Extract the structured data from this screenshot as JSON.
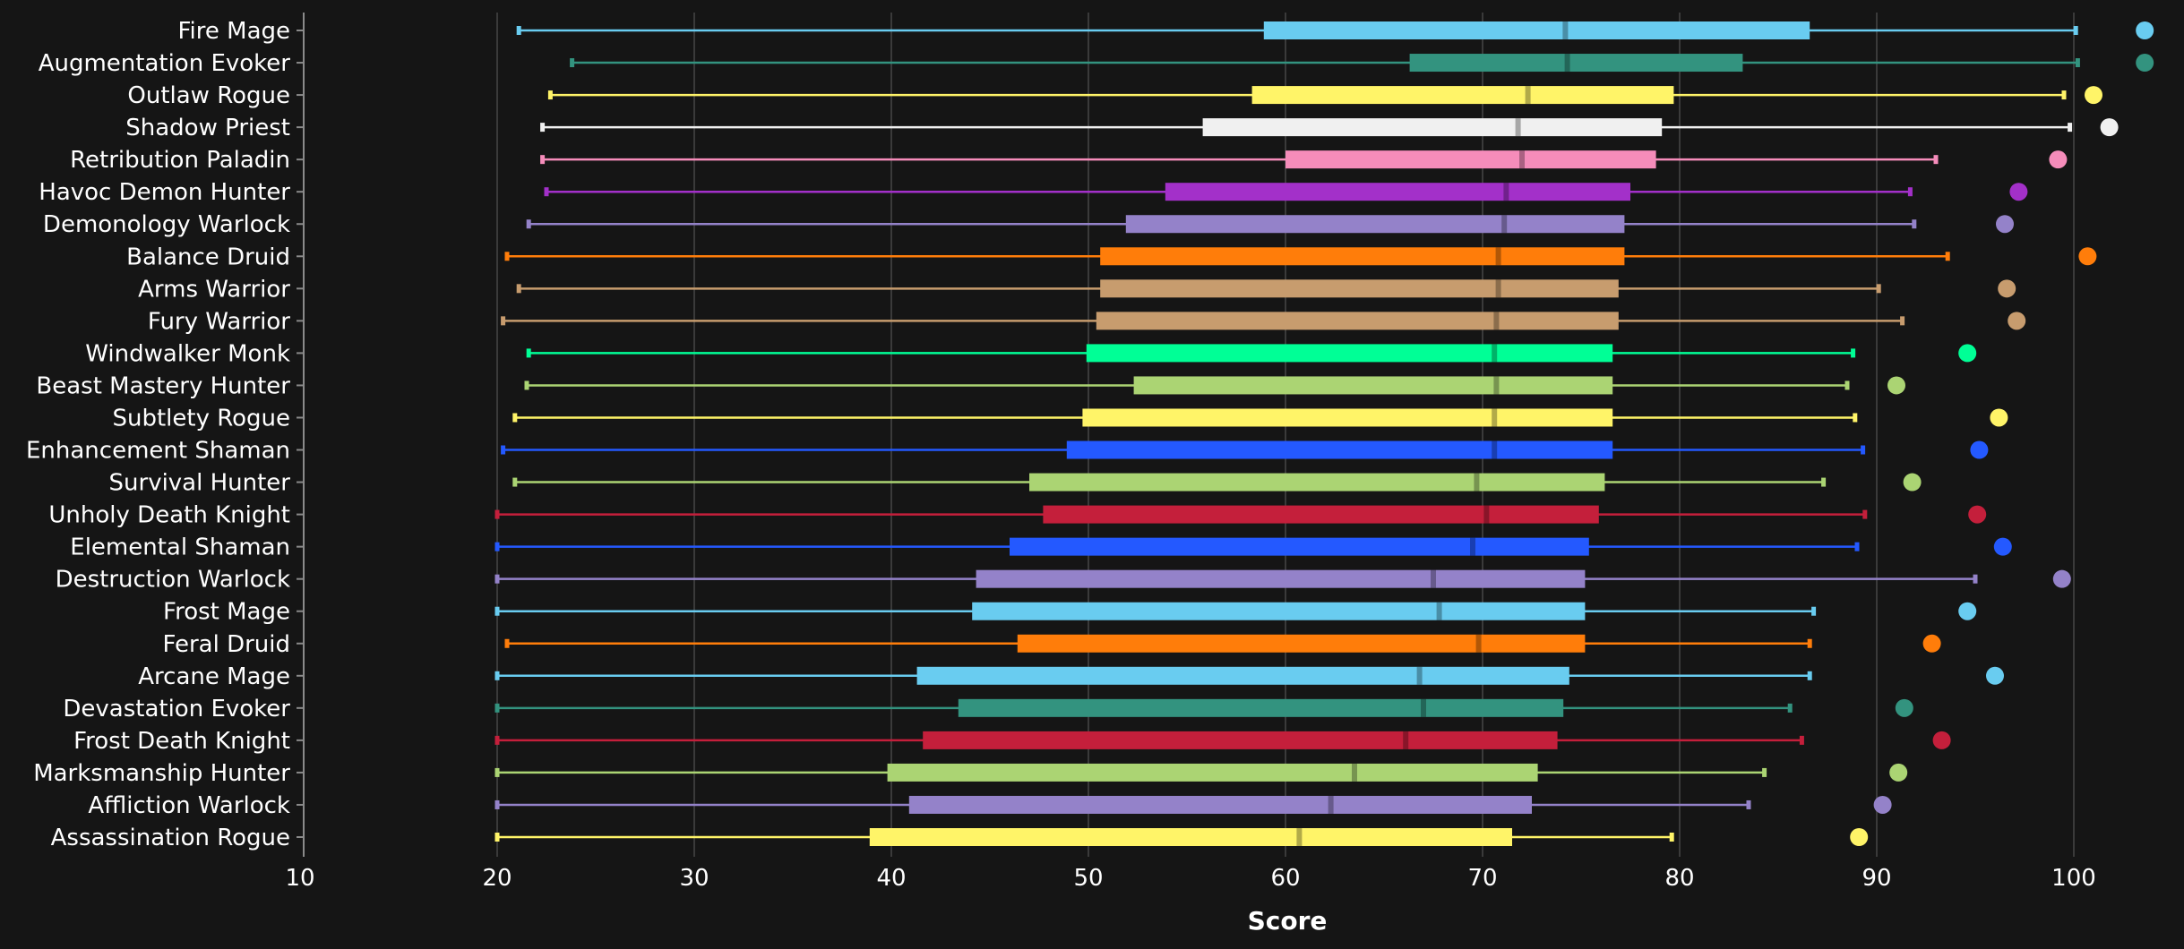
{
  "chart_data": {
    "type": "box",
    "title": "",
    "xlabel": "Score",
    "ylabel": "",
    "xlim": [
      10,
      103
    ],
    "xticks": [
      10,
      20,
      30,
      40,
      50,
      60,
      70,
      80,
      90,
      100
    ],
    "grid": true,
    "series": [
      {
        "name": "Fire Mage",
        "color": "#69ccf0",
        "min": 21.1,
        "q1": 58.9,
        "median": 74.2,
        "q3": 86.6,
        "max": 100.1,
        "dot": 103.6
      },
      {
        "name": "Augmentation Evoker",
        "color": "#33937f",
        "min": 23.8,
        "q1": 66.3,
        "median": 74.3,
        "q3": 83.2,
        "max": 100.2,
        "dot": 103.6
      },
      {
        "name": "Outlaw Rogue",
        "color": "#fff468",
        "min": 22.7,
        "q1": 58.3,
        "median": 72.3,
        "q3": 79.7,
        "max": 99.5,
        "dot": 101.0
      },
      {
        "name": "Shadow Priest",
        "color": "#f0f0f0",
        "min": 22.3,
        "q1": 55.8,
        "median": 71.8,
        "q3": 79.1,
        "max": 99.8,
        "dot": 101.8
      },
      {
        "name": "Retribution Paladin",
        "color": "#f58cba",
        "min": 22.3,
        "q1": 60.0,
        "median": 72.0,
        "q3": 78.8,
        "max": 93.0,
        "dot": 99.2
      },
      {
        "name": "Havoc Demon Hunter",
        "color": "#a330c9",
        "min": 22.5,
        "q1": 53.9,
        "median": 71.2,
        "q3": 77.5,
        "max": 91.7,
        "dot": 97.2
      },
      {
        "name": "Demonology Warlock",
        "color": "#9482c9",
        "min": 21.6,
        "q1": 51.9,
        "median": 71.1,
        "q3": 77.2,
        "max": 91.9,
        "dot": 96.5
      },
      {
        "name": "Balance Druid",
        "color": "#ff7d0a",
        "min": 20.5,
        "q1": 50.6,
        "median": 70.8,
        "q3": 77.2,
        "max": 93.6,
        "dot": 100.7
      },
      {
        "name": "Arms Warrior",
        "color": "#c79c6e",
        "min": 21.1,
        "q1": 50.6,
        "median": 70.8,
        "q3": 76.9,
        "max": 90.1,
        "dot": 96.6
      },
      {
        "name": "Fury Warrior",
        "color": "#c79c6e",
        "min": 20.3,
        "q1": 50.4,
        "median": 70.7,
        "q3": 76.9,
        "max": 91.3,
        "dot": 97.1
      },
      {
        "name": "Windwalker Monk",
        "color": "#00ff96",
        "min": 21.6,
        "q1": 49.9,
        "median": 70.6,
        "q3": 76.6,
        "max": 88.8,
        "dot": 94.6
      },
      {
        "name": "Beast Mastery Hunter",
        "color": "#abd473",
        "min": 21.5,
        "q1": 52.3,
        "median": 70.7,
        "q3": 76.6,
        "max": 88.5,
        "dot": 91.0
      },
      {
        "name": "Subtlety Rogue",
        "color": "#fff468",
        "min": 20.9,
        "q1": 49.7,
        "median": 70.6,
        "q3": 76.6,
        "max": 88.9,
        "dot": 96.2
      },
      {
        "name": "Enhancement Shaman",
        "color": "#2459ff",
        "min": 20.3,
        "q1": 48.9,
        "median": 70.6,
        "q3": 76.6,
        "max": 89.3,
        "dot": 95.2
      },
      {
        "name": "Survival Hunter",
        "color": "#abd473",
        "min": 20.9,
        "q1": 47.0,
        "median": 69.7,
        "q3": 76.2,
        "max": 87.3,
        "dot": 91.8
      },
      {
        "name": "Unholy Death Knight",
        "color": "#c41f3b",
        "min": 20.0,
        "q1": 47.7,
        "median": 70.2,
        "q3": 75.9,
        "max": 89.4,
        "dot": 95.1
      },
      {
        "name": "Elemental Shaman",
        "color": "#2459ff",
        "min": 20.0,
        "q1": 46.0,
        "median": 69.5,
        "q3": 75.4,
        "max": 89.0,
        "dot": 96.4
      },
      {
        "name": "Destruction Warlock",
        "color": "#9482c9",
        "min": 20.0,
        "q1": 44.3,
        "median": 67.5,
        "q3": 75.2,
        "max": 95.0,
        "dot": 99.4
      },
      {
        "name": "Frost Mage",
        "color": "#69ccf0",
        "min": 20.0,
        "q1": 44.1,
        "median": 67.8,
        "q3": 75.2,
        "max": 86.8,
        "dot": 94.6
      },
      {
        "name": "Feral Druid",
        "color": "#ff7d0a",
        "min": 20.5,
        "q1": 46.4,
        "median": 69.8,
        "q3": 75.2,
        "max": 86.6,
        "dot": 92.8
      },
      {
        "name": "Arcane Mage",
        "color": "#69ccf0",
        "min": 20.0,
        "q1": 41.3,
        "median": 66.8,
        "q3": 74.4,
        "max": 86.6,
        "dot": 96.0
      },
      {
        "name": "Devastation Evoker",
        "color": "#33937f",
        "min": 20.0,
        "q1": 43.4,
        "median": 67.0,
        "q3": 74.1,
        "max": 85.6,
        "dot": 91.4
      },
      {
        "name": "Frost Death Knight",
        "color": "#c41f3b",
        "min": 20.0,
        "q1": 41.6,
        "median": 66.1,
        "q3": 73.8,
        "max": 86.2,
        "dot": 93.3
      },
      {
        "name": "Marksmanship Hunter",
        "color": "#abd473",
        "min": 20.0,
        "q1": 39.8,
        "median": 63.5,
        "q3": 72.8,
        "max": 84.3,
        "dot": 91.1
      },
      {
        "name": "Affliction Warlock",
        "color": "#9482c9",
        "min": 20.0,
        "q1": 40.9,
        "median": 62.3,
        "q3": 72.5,
        "max": 83.5,
        "dot": 90.3
      },
      {
        "name": "Assassination Rogue",
        "color": "#fff468",
        "min": 20.0,
        "q1": 38.9,
        "median": 60.7,
        "q3": 71.5,
        "max": 79.6,
        "dot": 89.1
      }
    ]
  }
}
